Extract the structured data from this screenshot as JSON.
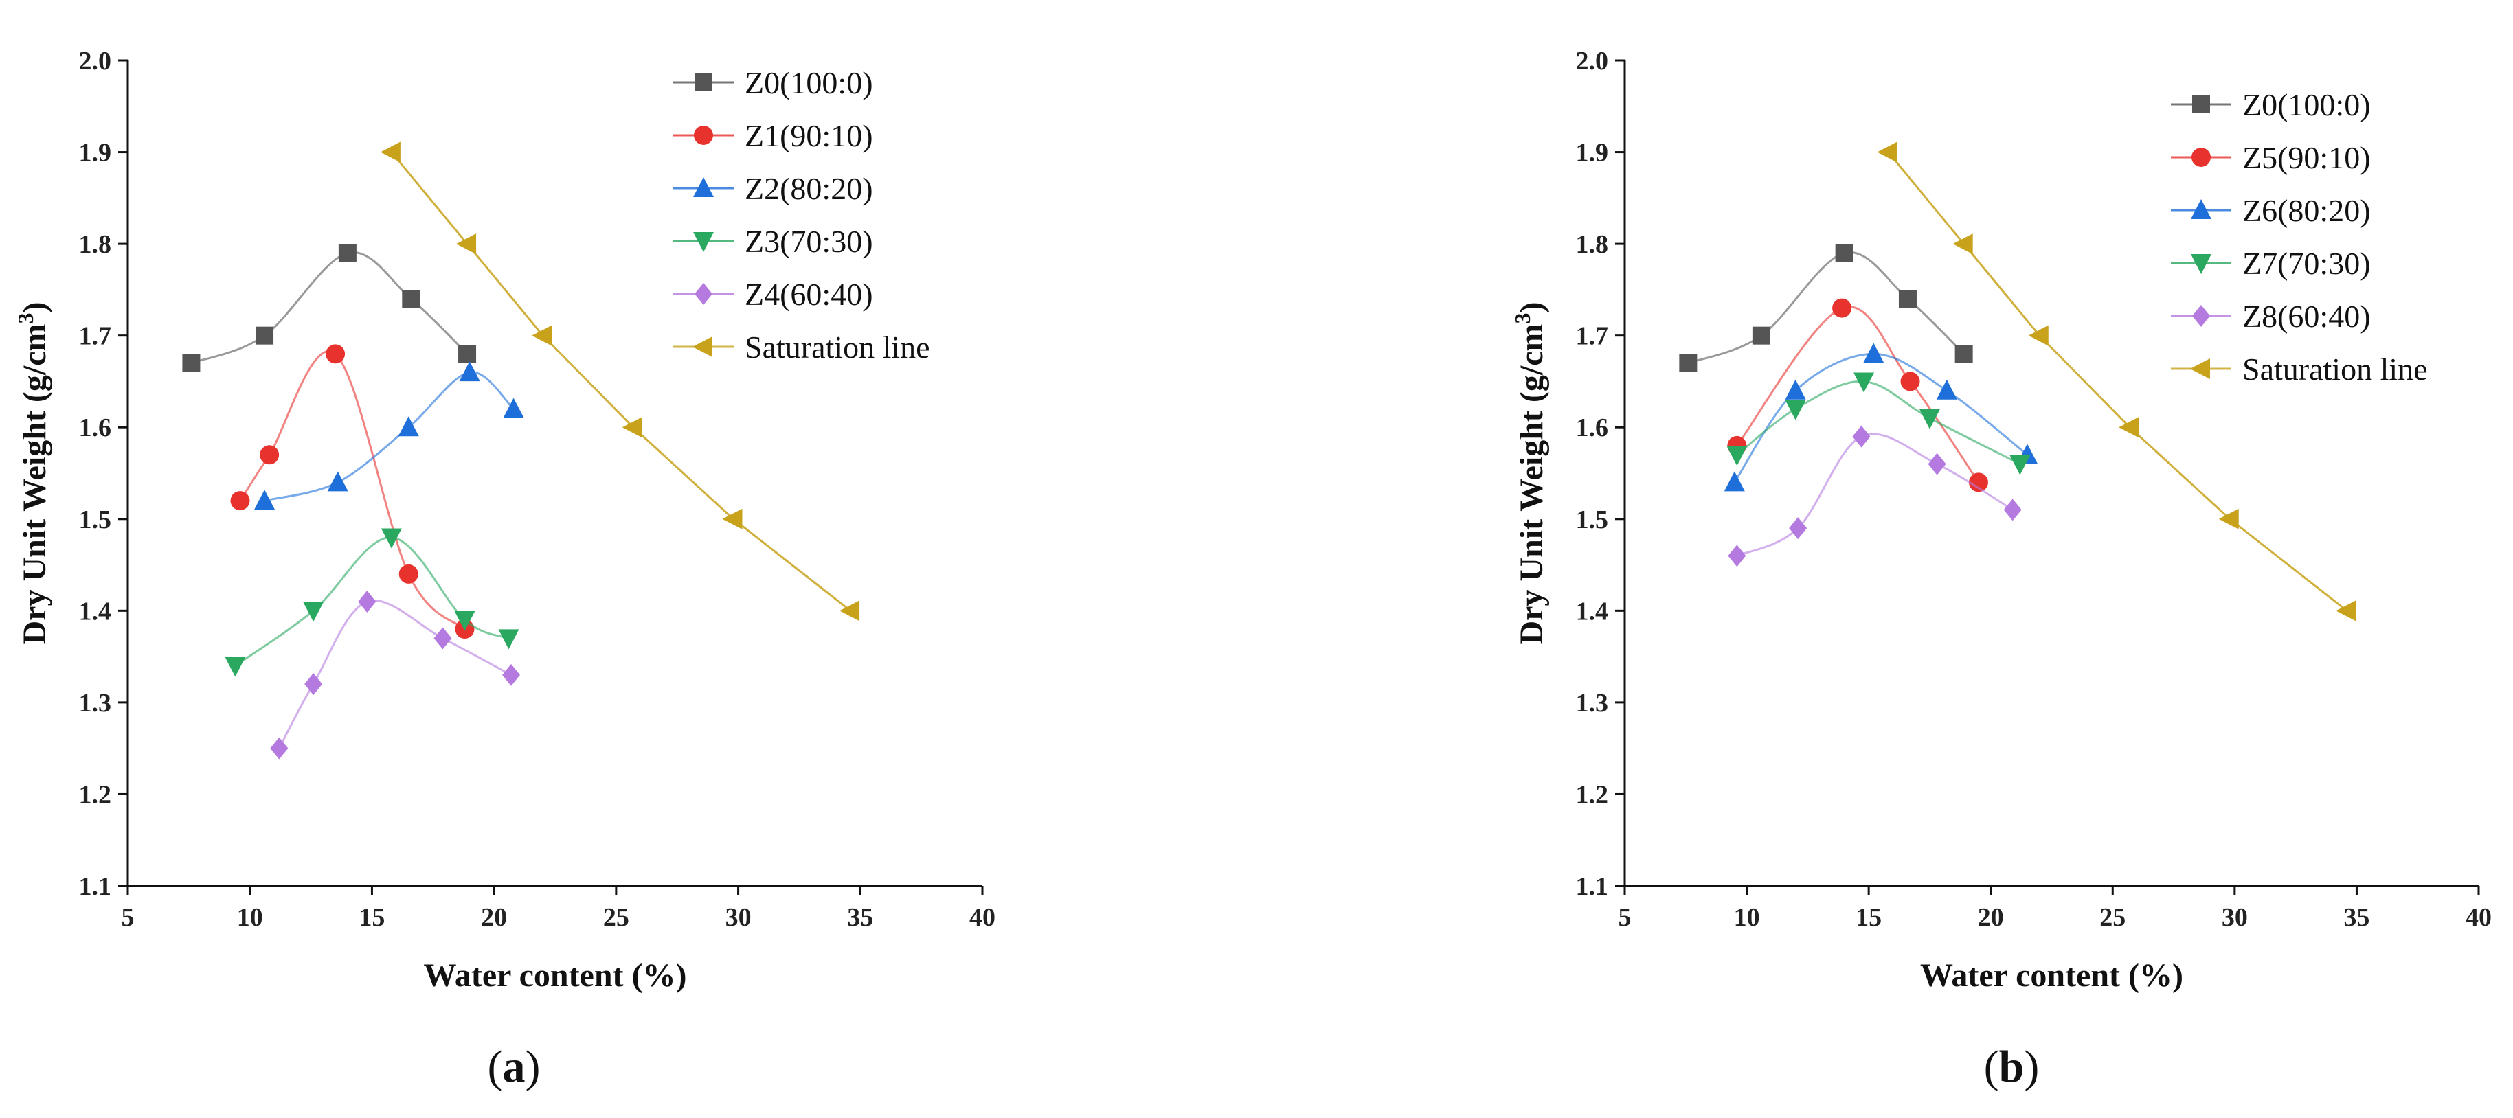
{
  "chart_data": [
    {
      "type": "line",
      "panel_label": "(a)",
      "panel_letter": "a",
      "xlabel": "Water content (%)",
      "ylabel": "Dry Unit Weight (g/cm³)",
      "ylabel_main": "Dry Unit Weight (g/cm",
      "ylabel_sup": "3",
      "ylabel_end": ")",
      "xlim": [
        5,
        40
      ],
      "ylim": [
        1.1,
        2.0
      ],
      "xticks": [
        "5",
        "10",
        "15",
        "20",
        "25",
        "30",
        "35",
        "40"
      ],
      "yticks": [
        "1.1",
        "1.2",
        "1.3",
        "1.4",
        "1.5",
        "1.6",
        "1.7",
        "1.8",
        "1.9",
        "2.0"
      ],
      "legend_position": "top-right",
      "series": [
        {
          "name": "Z0(100:0)",
          "color": "#555555",
          "marker": "square",
          "x": [
            7.6,
            10.6,
            14.0,
            16.6,
            18.9
          ],
          "y": [
            1.67,
            1.7,
            1.79,
            1.74,
            1.68
          ]
        },
        {
          "name": "Z1(90:10)",
          "color": "#e8322e",
          "marker": "circle",
          "x": [
            9.6,
            10.8,
            13.5,
            16.5,
            18.8
          ],
          "y": [
            1.52,
            1.57,
            1.68,
            1.44,
            1.38
          ]
        },
        {
          "name": "Z2(80:20)",
          "color": "#1e6fd9",
          "marker": "triangle-up",
          "x": [
            10.6,
            13.6,
            16.5,
            19.0,
            20.8
          ],
          "y": [
            1.52,
            1.54,
            1.6,
            1.66,
            1.62
          ]
        },
        {
          "name": "Z3(70:30)",
          "color": "#2aa860",
          "marker": "triangle-down",
          "x": [
            9.4,
            12.6,
            15.8,
            18.8,
            20.6
          ],
          "y": [
            1.34,
            1.4,
            1.48,
            1.39,
            1.37
          ]
        },
        {
          "name": "Z4(60:40)",
          "color": "#b57ae0",
          "marker": "diamond",
          "x": [
            11.2,
            12.6,
            14.8,
            17.9,
            20.7
          ],
          "y": [
            1.25,
            1.32,
            1.41,
            1.37,
            1.33
          ]
        },
        {
          "name": "Saturation line",
          "color": "#c8a21b",
          "marker": "triangle-left",
          "x": [
            15.8,
            18.9,
            22.0,
            25.7,
            29.8,
            34.6
          ],
          "y": [
            1.9,
            1.8,
            1.7,
            1.6,
            1.5,
            1.4
          ]
        }
      ]
    },
    {
      "type": "line",
      "panel_label": "(b)",
      "panel_letter": "b",
      "xlabel": "Water content (%)",
      "ylabel": "Dry Unit Weight (g/cm³)",
      "ylabel_main": "Dry Unit Weight (g/cm",
      "ylabel_sup": "3",
      "ylabel_end": ")",
      "xlim": [
        5,
        40
      ],
      "ylim": [
        1.1,
        2.0
      ],
      "xticks": [
        "5",
        "10",
        "15",
        "20",
        "25",
        "30",
        "35",
        "40"
      ],
      "yticks": [
        "1.1",
        "1.2",
        "1.3",
        "1.4",
        "1.5",
        "1.6",
        "1.7",
        "1.8",
        "1.9",
        "2.0"
      ],
      "legend_position": "top-right",
      "series": [
        {
          "name": "Z0(100:0)",
          "color": "#555555",
          "marker": "square",
          "x": [
            7.6,
            10.6,
            14.0,
            16.6,
            18.9
          ],
          "y": [
            1.67,
            1.7,
            1.79,
            1.74,
            1.68
          ]
        },
        {
          "name": "Z5(90:10)",
          "color": "#e8322e",
          "marker": "circle",
          "x": [
            9.6,
            13.9,
            16.7,
            19.5
          ],
          "y": [
            1.58,
            1.73,
            1.65,
            1.54
          ]
        },
        {
          "name": "Z6(80:20)",
          "color": "#1e6fd9",
          "marker": "triangle-up",
          "x": [
            9.5,
            12.0,
            15.2,
            18.2,
            21.5
          ],
          "y": [
            1.54,
            1.64,
            1.68,
            1.64,
            1.57
          ]
        },
        {
          "name": "Z7(70:30)",
          "color": "#2aa860",
          "marker": "triangle-down",
          "x": [
            9.6,
            12.0,
            14.8,
            17.5,
            21.2
          ],
          "y": [
            1.57,
            1.62,
            1.65,
            1.61,
            1.56
          ]
        },
        {
          "name": "Z8(60:40)",
          "color": "#b57ae0",
          "marker": "diamond",
          "x": [
            9.6,
            12.1,
            14.7,
            17.8,
            20.9
          ],
          "y": [
            1.46,
            1.49,
            1.59,
            1.56,
            1.51
          ]
        },
        {
          "name": "Saturation line",
          "color": "#c8a21b",
          "marker": "triangle-left",
          "x": [
            15.8,
            18.9,
            22.0,
            25.7,
            29.8,
            34.6
          ],
          "y": [
            1.9,
            1.8,
            1.7,
            1.6,
            1.5,
            1.4
          ]
        }
      ]
    }
  ]
}
